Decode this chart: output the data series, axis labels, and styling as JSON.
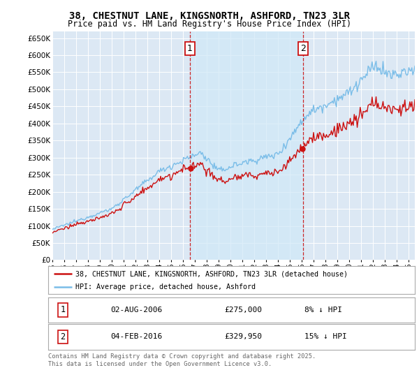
{
  "title_line1": "38, CHESTNUT LANE, KINGSNORTH, ASHFORD, TN23 3LR",
  "title_line2": "Price paid vs. HM Land Registry's House Price Index (HPI)",
  "ylabel_ticks": [
    "£0",
    "£50K",
    "£100K",
    "£150K",
    "£200K",
    "£250K",
    "£300K",
    "£350K",
    "£400K",
    "£450K",
    "£500K",
    "£550K",
    "£600K",
    "£650K"
  ],
  "ytick_values": [
    0,
    50000,
    100000,
    150000,
    200000,
    250000,
    300000,
    350000,
    400000,
    450000,
    500000,
    550000,
    600000,
    650000
  ],
  "ylim": [
    0,
    670000
  ],
  "xlim_start": 1995.0,
  "xlim_end": 2025.5,
  "hpi_color": "#7abde8",
  "hpi_fill_color": "#d0e8f8",
  "price_color": "#cc1111",
  "bg_color": "#dce8f4",
  "legend_label_price": "38, CHESTNUT LANE, KINGSNORTH, ASHFORD, TN23 3LR (detached house)",
  "legend_label_hpi": "HPI: Average price, detached house, Ashford",
  "marker1_x": 2006.58,
  "marker1_y": 275000,
  "marker1_label": "1",
  "marker1_date": "02-AUG-2006",
  "marker1_price": "£275,000",
  "marker1_note": "8% ↓ HPI",
  "marker2_x": 2016.08,
  "marker2_y": 329950,
  "marker2_label": "2",
  "marker2_date": "04-FEB-2016",
  "marker2_price": "£329,950",
  "marker2_note": "15% ↓ HPI",
  "footer_text": "Contains HM Land Registry data © Crown copyright and database right 2025.\nThis data is licensed under the Open Government Licence v3.0.",
  "xticks": [
    1995,
    1996,
    1997,
    1998,
    1999,
    2000,
    2001,
    2002,
    2003,
    2004,
    2005,
    2006,
    2007,
    2008,
    2009,
    2010,
    2011,
    2012,
    2013,
    2014,
    2015,
    2016,
    2017,
    2018,
    2019,
    2020,
    2021,
    2022,
    2023,
    2024,
    2025
  ]
}
